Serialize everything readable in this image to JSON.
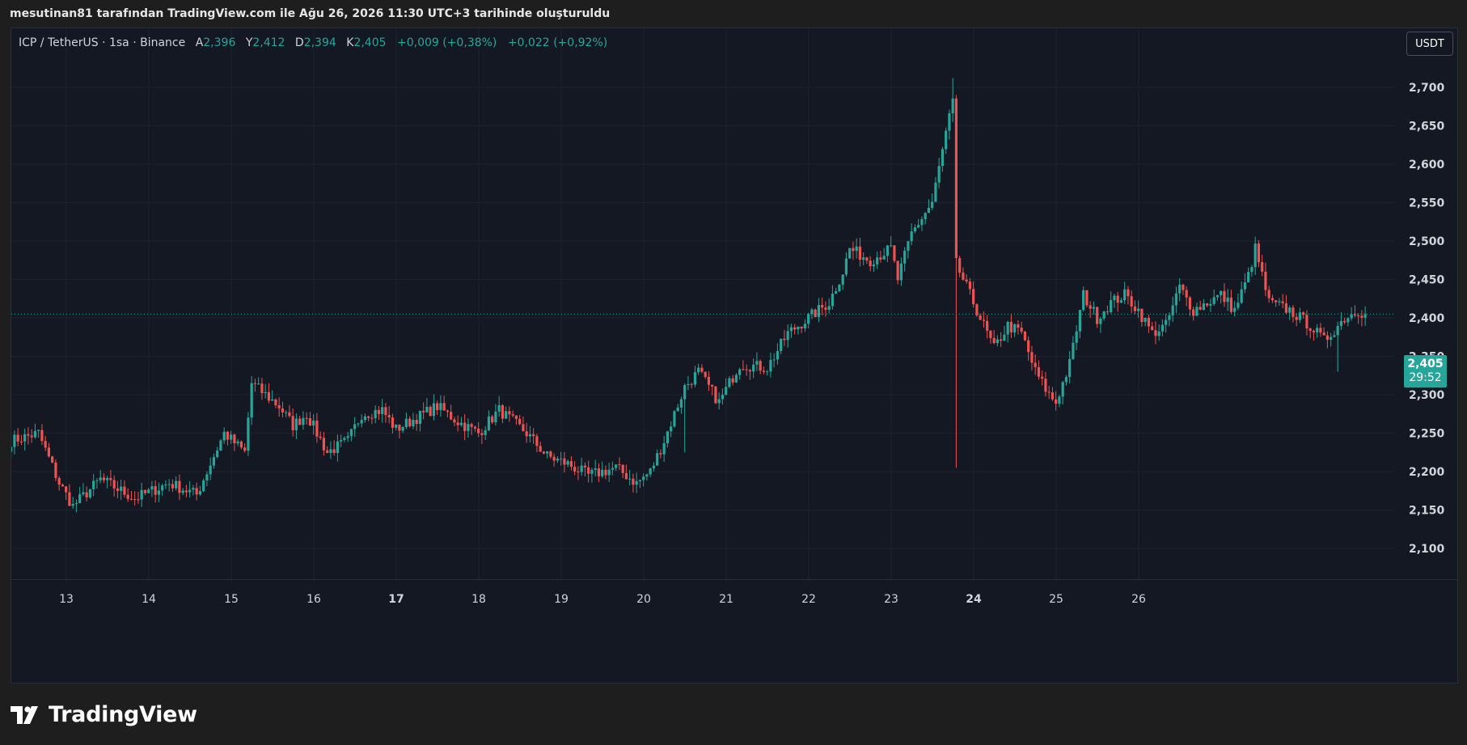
{
  "header": {
    "caption": "mesutinan81 tarafından TradingView.com ile Ağu 26, 2026 11:30 UTC+3 tarihinde oluşturuldu"
  },
  "legend": {
    "symbol": "ICP / TetherUS · 1sa · Binance",
    "open_label": "A",
    "open_value": "2,396",
    "high_label": "Y",
    "high_value": "2,412",
    "low_label": "D",
    "low_value": "2,394",
    "close_label": "K",
    "close_value": "2,405",
    "change_1": "+0,009 (+0,38%)",
    "change_2": "+0,022 (+0,92%)"
  },
  "currency_button": "USDT",
  "price_tag": {
    "price": "2,405",
    "countdown": "29:52"
  },
  "branding": {
    "logo_text": "TradingView"
  },
  "colors": {
    "up": "#26a69a",
    "down": "#ef5350",
    "background": "#141823",
    "grid": "#1e2230",
    "text": "#d1d4dc"
  },
  "chart_data": {
    "type": "candlestick",
    "interval": "1h",
    "y_ticks": [
      "2,100",
      "2,150",
      "2,200",
      "2,250",
      "2,300",
      "2,350",
      "2,400",
      "2,450",
      "2,500",
      "2,550",
      "2,600",
      "2,650",
      "2,700"
    ],
    "ylim": [
      2.07,
      2.74
    ],
    "x_ticks": [
      {
        "label": "13",
        "day": 13,
        "bold": false
      },
      {
        "label": "14",
        "day": 14,
        "bold": false
      },
      {
        "label": "15",
        "day": 15,
        "bold": false
      },
      {
        "label": "16",
        "day": 16,
        "bold": false
      },
      {
        "label": "17",
        "day": 17,
        "bold": true
      },
      {
        "label": "18",
        "day": 18,
        "bold": false
      },
      {
        "label": "19",
        "day": 19,
        "bold": false
      },
      {
        "label": "20",
        "day": 20,
        "bold": false
      },
      {
        "label": "21",
        "day": 21,
        "bold": false
      },
      {
        "label": "22",
        "day": 22,
        "bold": false
      },
      {
        "label": "23",
        "day": 23,
        "bold": false
      },
      {
        "label": "24",
        "day": 24,
        "bold": true
      },
      {
        "label": "25",
        "day": 25,
        "bold": false
      },
      {
        "label": "26",
        "day": 26,
        "bold": false
      }
    ],
    "xlim_days": [
      12.32,
      27.0
    ],
    "start_day": 12.33,
    "last_price": 2.405,
    "close_anchors": [
      [
        0,
        2.24
      ],
      [
        8,
        2.25
      ],
      [
        14,
        2.185
      ],
      [
        18,
        2.155
      ],
      [
        26,
        2.19
      ],
      [
        36,
        2.165
      ],
      [
        46,
        2.185
      ],
      [
        54,
        2.17
      ],
      [
        62,
        2.25
      ],
      [
        68,
        2.225
      ],
      [
        70,
        2.315
      ],
      [
        78,
        2.285
      ],
      [
        82,
        2.26
      ],
      [
        86,
        2.275
      ],
      [
        92,
        2.225
      ],
      [
        98,
        2.24
      ],
      [
        102,
        2.275
      ],
      [
        108,
        2.28
      ],
      [
        112,
        2.255
      ],
      [
        118,
        2.27
      ],
      [
        124,
        2.285
      ],
      [
        130,
        2.265
      ],
      [
        136,
        2.25
      ],
      [
        142,
        2.28
      ],
      [
        150,
        2.25
      ],
      [
        156,
        2.22
      ],
      [
        162,
        2.21
      ],
      [
        168,
        2.195
      ],
      [
        176,
        2.205
      ],
      [
        182,
        2.185
      ],
      [
        186,
        2.2
      ],
      [
        190,
        2.24
      ],
      [
        196,
        2.31
      ],
      [
        200,
        2.33
      ],
      [
        206,
        2.29
      ],
      [
        212,
        2.34
      ],
      [
        220,
        2.335
      ],
      [
        226,
        2.38
      ],
      [
        232,
        2.4
      ],
      [
        238,
        2.42
      ],
      [
        242,
        2.46
      ],
      [
        244,
        2.49
      ],
      [
        250,
        2.475
      ],
      [
        256,
        2.49
      ],
      [
        258,
        2.45
      ],
      [
        262,
        2.51
      ],
      [
        268,
        2.55
      ],
      [
        272,
        2.64
      ],
      [
        274,
        2.68
      ],
      [
        275,
        2.47
      ],
      [
        278,
        2.44
      ],
      [
        282,
        2.4
      ],
      [
        286,
        2.36
      ],
      [
        290,
        2.39
      ],
      [
        294,
        2.38
      ],
      [
        298,
        2.33
      ],
      [
        302,
        2.3
      ],
      [
        304,
        2.29
      ],
      [
        308,
        2.34
      ],
      [
        312,
        2.43
      ],
      [
        316,
        2.4
      ],
      [
        320,
        2.42
      ],
      [
        324,
        2.43
      ],
      [
        328,
        2.41
      ],
      [
        332,
        2.38
      ],
      [
        336,
        2.39
      ],
      [
        340,
        2.44
      ],
      [
        344,
        2.41
      ],
      [
        348,
        2.42
      ],
      [
        352,
        2.43
      ],
      [
        356,
        2.41
      ],
      [
        360,
        2.455
      ],
      [
        362,
        2.49
      ],
      [
        366,
        2.42
      ],
      [
        372,
        2.41
      ],
      [
        378,
        2.39
      ],
      [
        382,
        2.37
      ],
      [
        388,
        2.4
      ],
      [
        392,
        2.41
      ],
      [
        394,
        2.405
      ]
    ]
  }
}
